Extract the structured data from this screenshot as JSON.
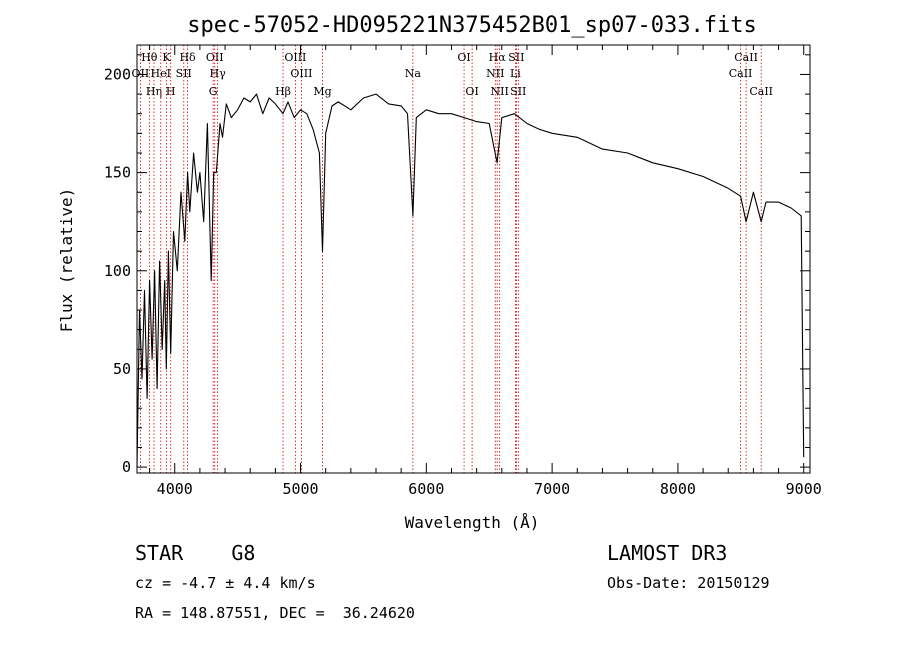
{
  "chart_data": {
    "type": "line",
    "title": "spec-57052-HD095221N375452B01_sp07-033.fits",
    "xlabel": "Wavelength (Å)",
    "ylabel": "Flux (relative)",
    "xlim": [
      3700,
      9050
    ],
    "ylim": [
      -3,
      215
    ],
    "x_ticks": [
      4000,
      5000,
      6000,
      7000,
      8000,
      9000
    ],
    "y_ticks": [
      0,
      50,
      100,
      150,
      200
    ],
    "grid": false,
    "legend": "none",
    "line_color": "#000000",
    "marker_color": "#cc0000",
    "series": [
      {
        "x": [
          3700,
          3720,
          3740,
          3760,
          3780,
          3800,
          3820,
          3840,
          3860,
          3880,
          3900,
          3920,
          3933,
          3950,
          3968,
          3990,
          4020,
          4050,
          4080,
          4102,
          4120,
          4150,
          4180,
          4200,
          4230,
          4260,
          4290,
          4310,
          4330,
          4360,
          4380,
          4410,
          4450,
          4500,
          4550,
          4600,
          4650,
          4700,
          4750,
          4800,
          4861,
          4900,
          4950,
          5000,
          5050,
          5100,
          5150,
          5175,
          5200,
          5250,
          5300,
          5400,
          5500,
          5600,
          5700,
          5800,
          5850,
          5893,
          5920,
          6000,
          6100,
          6200,
          6300,
          6400,
          6500,
          6563,
          6600,
          6700,
          6800,
          6900,
          7000,
          7200,
          7400,
          7600,
          7800,
          8000,
          8200,
          8400,
          8498,
          8542,
          8600,
          8662,
          8700,
          8800,
          8900,
          8980,
          9000
        ],
        "y": [
          0,
          80,
          45,
          90,
          35,
          95,
          55,
          100,
          40,
          105,
          60,
          95,
          50,
          110,
          58,
          120,
          100,
          140,
          115,
          150,
          130,
          160,
          140,
          150,
          125,
          175,
          95,
          150,
          150,
          175,
          168,
          185,
          178,
          182,
          188,
          186,
          190,
          180,
          188,
          185,
          180,
          186,
          178,
          182,
          180,
          172,
          160,
          110,
          170,
          184,
          186,
          182,
          188,
          190,
          185,
          184,
          180,
          128,
          178,
          182,
          180,
          180,
          178,
          176,
          175,
          155,
          178,
          180,
          175,
          172,
          170,
          168,
          162,
          160,
          155,
          152,
          148,
          142,
          138,
          125,
          140,
          125,
          135,
          135,
          132,
          128,
          5
        ]
      }
    ],
    "line_markers": [
      {
        "label": "Hθ",
        "wavelength": 3798,
        "row": 1
      },
      {
        "label": "OII",
        "wavelength": 3727,
        "row": 2
      },
      {
        "label": "Hη",
        "wavelength": 3835,
        "row": 3
      },
      {
        "label": "HeI",
        "wavelength": 3889,
        "row": 2
      },
      {
        "label": "K",
        "wavelength": 3934,
        "row": 1
      },
      {
        "label": "SII",
        "wavelength": 4072,
        "row": 2
      },
      {
        "label": "H",
        "wavelength": 3968,
        "row": 3
      },
      {
        "label": "Hδ",
        "wavelength": 4102,
        "row": 1
      },
      {
        "label": "OII",
        "wavelength": 4318,
        "row": 1
      },
      {
        "label": "Hγ",
        "wavelength": 4341,
        "row": 2
      },
      {
        "label": "G",
        "wavelength": 4305,
        "row": 3
      },
      {
        "label": "Hβ",
        "wavelength": 4861,
        "row": 3
      },
      {
        "label": "OIII",
        "wavelength": 4959,
        "row": 1
      },
      {
        "label": "OIII",
        "wavelength": 5007,
        "row": 2
      },
      {
        "label": "Mg",
        "wavelength": 5175,
        "row": 3
      },
      {
        "label": "Na",
        "wavelength": 5893,
        "row": 2
      },
      {
        "label": "OI",
        "wavelength": 6300,
        "row": 1
      },
      {
        "label": "OI",
        "wavelength": 6364,
        "row": 3
      },
      {
        "label": "Hα",
        "wavelength": 6563,
        "row": 1
      },
      {
        "label": "NII",
        "wavelength": 6548,
        "row": 2
      },
      {
        "label": "NII",
        "wavelength": 6583,
        "row": 3
      },
      {
        "label": "SII",
        "wavelength": 6716,
        "row": 1
      },
      {
        "label": "Li",
        "wavelength": 6708,
        "row": 2
      },
      {
        "label": "SII",
        "wavelength": 6731,
        "row": 3
      },
      {
        "label": "CaII",
        "wavelength": 8542,
        "row": 1
      },
      {
        "label": "CaII",
        "wavelength": 8498,
        "row": 2
      },
      {
        "label": "CaII",
        "wavelength": 8662,
        "row": 3
      }
    ]
  },
  "info": {
    "class_line": "STAR    G8",
    "cz_line": "cz = -4.7 ± 4.4 km/s",
    "radec_line": "RA = 148.87551, DEC =  36.24620",
    "survey": "LAMOST DR3",
    "obs_date": "Obs-Date: 20150129"
  }
}
